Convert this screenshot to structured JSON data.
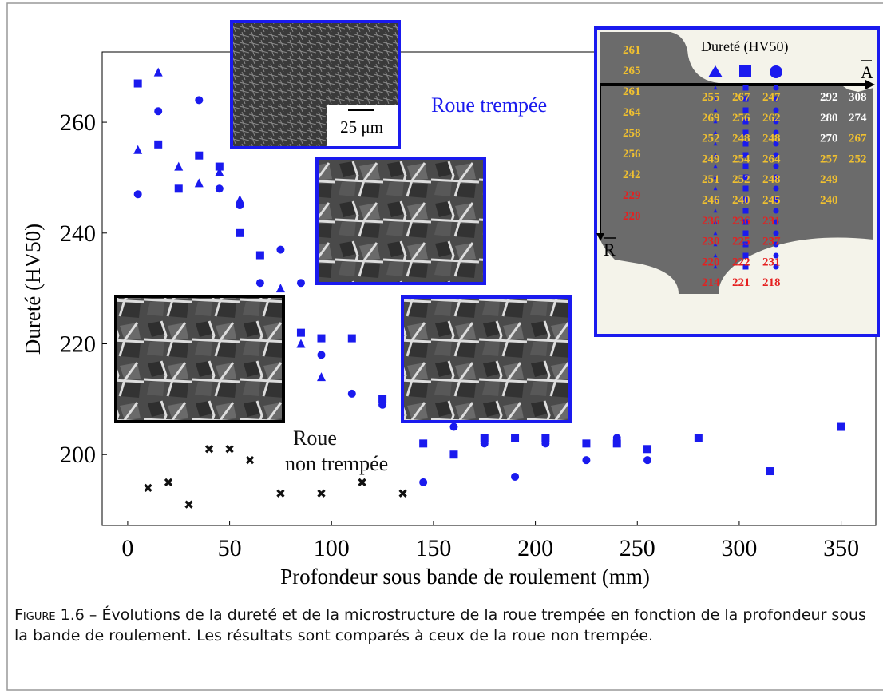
{
  "chart_data": {
    "type": "scatter",
    "xlabel": "Profondeur sous bande de roulement (mm)",
    "ylabel": "Dureté (HV50)",
    "xlim": [
      -12.5,
      367
    ],
    "ylim": [
      187.2,
      272.7
    ],
    "xticks": [
      0,
      50,
      100,
      150,
      200,
      250,
      300,
      350
    ],
    "yticks": [
      200,
      220,
      240,
      260
    ],
    "series": [
      {
        "marker": "square",
        "color": "#1a1aee",
        "x": [
          5,
          15,
          25,
          35,
          45,
          55,
          65,
          85,
          95,
          110,
          125,
          145,
          160,
          175,
          190,
          205,
          225,
          240,
          255,
          280,
          315,
          350
        ],
        "values": [
          267,
          256,
          248,
          254,
          252,
          240,
          236,
          222,
          221,
          221,
          210,
          202,
          200,
          203,
          203,
          203,
          202,
          202,
          201,
          203,
          197,
          205
        ]
      },
      {
        "marker": "triangle",
        "color": "#1a1aee",
        "x": [
          5,
          15,
          25,
          35,
          45,
          55,
          75,
          85,
          95
        ],
        "values": [
          255,
          269,
          252,
          249,
          251,
          246,
          230,
          220,
          214
        ]
      },
      {
        "marker": "circle",
        "color": "#1a1aee",
        "x": [
          5,
          15,
          35,
          45,
          55,
          65,
          75,
          85,
          95,
          110,
          125,
          145,
          160,
          175,
          190,
          205,
          225,
          240,
          255
        ],
        "values": [
          247,
          262,
          264,
          248,
          245,
          231,
          237,
          231,
          218,
          211,
          209,
          195,
          205,
          202,
          196,
          202,
          199,
          203,
          199
        ]
      },
      {
        "marker": "cross",
        "color": "#111111",
        "x": [
          10,
          20,
          30,
          40,
          50,
          60,
          75,
          95,
          115,
          135
        ],
        "values": [
          194,
          195,
          191,
          201,
          201,
          199,
          193,
          193,
          195,
          193
        ]
      }
    ],
    "annotations": [
      {
        "lines": [
          "Roue trempée"
        ],
        "color": "#1a1aee"
      },
      {
        "lines": [
          "Roue",
          "non trempée"
        ],
        "color": "#111111"
      }
    ],
    "scale_bar": "25 μm",
    "inset": {
      "title": "Dureté (HV50)",
      "axis_a": "A",
      "axis_r": "R",
      "left_column": [
        261,
        265,
        261,
        264,
        258,
        256,
        242,
        229,
        220
      ],
      "left_colors": [
        "#f0c030",
        "#f0c030",
        "#f0c030",
        "#f0c030",
        "#f0c030",
        "#f0c030",
        "#f0c030",
        "#e52020",
        "#e52020"
      ],
      "middle_rows": [
        [
          255,
          267,
          247
        ],
        [
          269,
          256,
          262
        ],
        [
          252,
          248,
          248
        ],
        [
          249,
          254,
          264
        ],
        [
          251,
          252,
          248
        ],
        [
          246,
          240,
          245
        ],
        [
          236,
          236,
          231
        ],
        [
          230,
          225,
          237
        ],
        [
          220,
          222,
          231
        ],
        [
          214,
          221,
          218
        ]
      ],
      "middle_colors": [
        "#f0c030",
        "#f0c030",
        "#f0c030",
        "#f0c030",
        "#f0c030",
        "#f0c030",
        "#e52020",
        "#e52020",
        "#e52020",
        "#e52020"
      ],
      "right_rows": [
        [
          292,
          308
        ],
        [
          280,
          274
        ],
        [
          270,
          267
        ],
        [
          257,
          252
        ],
        [
          249
        ],
        [
          240
        ]
      ],
      "right_colors": [
        [
          "#ffffff",
          "#ffffff"
        ],
        [
          "#ffffff",
          "#ffffff"
        ],
        [
          "#ffffff",
          "#f0c030"
        ],
        [
          "#f0c030",
          "#f0c030"
        ],
        [
          "#f0c030"
        ],
        [
          "#f0c030"
        ]
      ]
    }
  },
  "caption": {
    "label": "Figure 1.6",
    "text": "– Évolutions de la dureté et de la microstructure de la roue trempée en fonction de la profondeur sous la bande de roulement. Les résultats sont comparés à ceux de la roue non trempée."
  }
}
